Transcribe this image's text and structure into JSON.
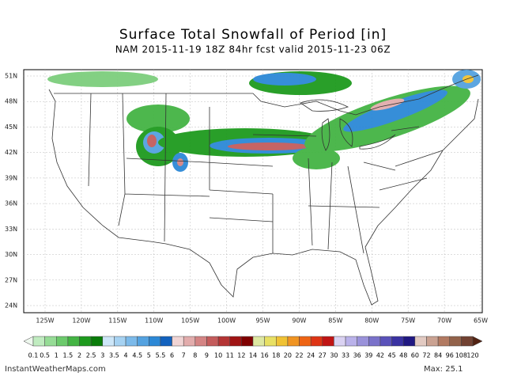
{
  "header": {
    "title": "Surface Total Snowfall of Period [in]",
    "subtitle": "NAM 2015-11-19 18Z 84hr fcst valid 2015-11-23 06Z"
  },
  "map": {
    "lat_labels": [
      "51N",
      "48N",
      "45N",
      "42N",
      "39N",
      "36N",
      "33N",
      "30N",
      "27N",
      "24N"
    ],
    "lon_labels": [
      "125W",
      "120W",
      "115W",
      "110W",
      "105W",
      "100W",
      "95W",
      "90W",
      "85W",
      "80W",
      "75W",
      "70W",
      "65W"
    ]
  },
  "colorbar": {
    "labels": [
      "0.1",
      "0.5",
      "1",
      "1.5",
      "2",
      "2.5",
      "3",
      "3.5",
      "4",
      "4.5",
      "5",
      "5.5",
      "6",
      "7",
      "8",
      "9",
      "10",
      "11",
      "12",
      "14",
      "16",
      "18",
      "20",
      "22",
      "24",
      "27",
      "30",
      "33",
      "36",
      "39",
      "42",
      "45",
      "48",
      "60",
      "72",
      "84",
      "96",
      "108",
      "120"
    ],
    "colors": [
      "#eef8ee",
      "#c0ecc0",
      "#96dc96",
      "#6cca6c",
      "#44b444",
      "#1e9a1e",
      "#0a7c0a",
      "#cde6f8",
      "#a6d2f2",
      "#7cbaea",
      "#54a2e0",
      "#2c88d6",
      "#1262be",
      "#f0d4d4",
      "#e2acac",
      "#d48484",
      "#c45c5c",
      "#b43434",
      "#a01414",
      "#800000",
      "#dee8a2",
      "#e8e064",
      "#f0c234",
      "#f09422",
      "#ee6414",
      "#de3414",
      "#c01414",
      "#dad2f2",
      "#bab2ea",
      "#9a92da",
      "#7a72ca",
      "#5a52ba",
      "#3a32a2",
      "#201882",
      "#e2cac2",
      "#caa292",
      "#b27a62",
      "#92624a",
      "#724232",
      "#522212"
    ]
  },
  "footer": {
    "site": "InstantWeatherMaps.com",
    "max": "Max:  25.1"
  }
}
